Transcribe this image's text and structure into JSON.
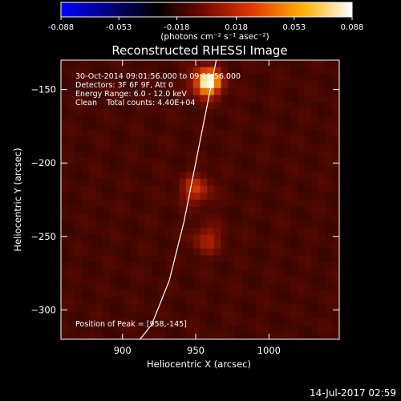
{
  "colorbar": {
    "ticks": [
      "-0.088",
      "-0.053",
      "-0.018",
      "0.018",
      "0.053",
      "0.088"
    ],
    "tick_values": [
      -0.088,
      -0.053,
      -0.018,
      0.018,
      0.053,
      0.088
    ],
    "range": [
      -0.088,
      0.088
    ],
    "unit": "(photons cm⁻² s⁻¹ asec⁻²)",
    "colors": [
      "#0000ff",
      "#000000",
      "#7a0a00",
      "#e23a00",
      "#ffb000",
      "#ffffff"
    ]
  },
  "title": "Reconstructed RHESSI Image",
  "info": {
    "line1": "30-Oct-2014 09:01:56.000 to 09:11:56.000",
    "line2": "Detectors: 3F 6F 9F, Att 0",
    "line3": "Energy Range: 6.0 - 12.0 keV",
    "line4": "Clean    Total counts: 4.40E+04"
  },
  "peak_label": "Position of Peak = [958,-145]",
  "footer_timestamp": "14-Jul-2017 02:59",
  "chart_data": {
    "type": "heatmap",
    "title": "Reconstructed RHESSI Image",
    "xlabel": "Heliocentric X (arcsec)",
    "ylabel": "Heliocentric Y (arcsec)",
    "xlim": [
      858,
      1048
    ],
    "ylim": [
      -320,
      -130
    ],
    "xticks": [
      900,
      950,
      1000
    ],
    "yticks": [
      -150,
      -200,
      -250,
      -300
    ],
    "colormap_range": [
      -0.088,
      0.088
    ],
    "sources": [
      {
        "x": 958,
        "y": -145,
        "peak": 0.088
      },
      {
        "x": 950,
        "y": -218,
        "peak": 0.04
      },
      {
        "x": 958,
        "y": -252,
        "peak": 0.03
      }
    ],
    "limb_curve": [
      [
        964,
        -130
      ],
      [
        958,
        -160
      ],
      [
        950,
        -200
      ],
      [
        942,
        -240
      ],
      [
        932,
        -280
      ],
      [
        920,
        -310
      ],
      [
        912,
        -320
      ]
    ]
  }
}
